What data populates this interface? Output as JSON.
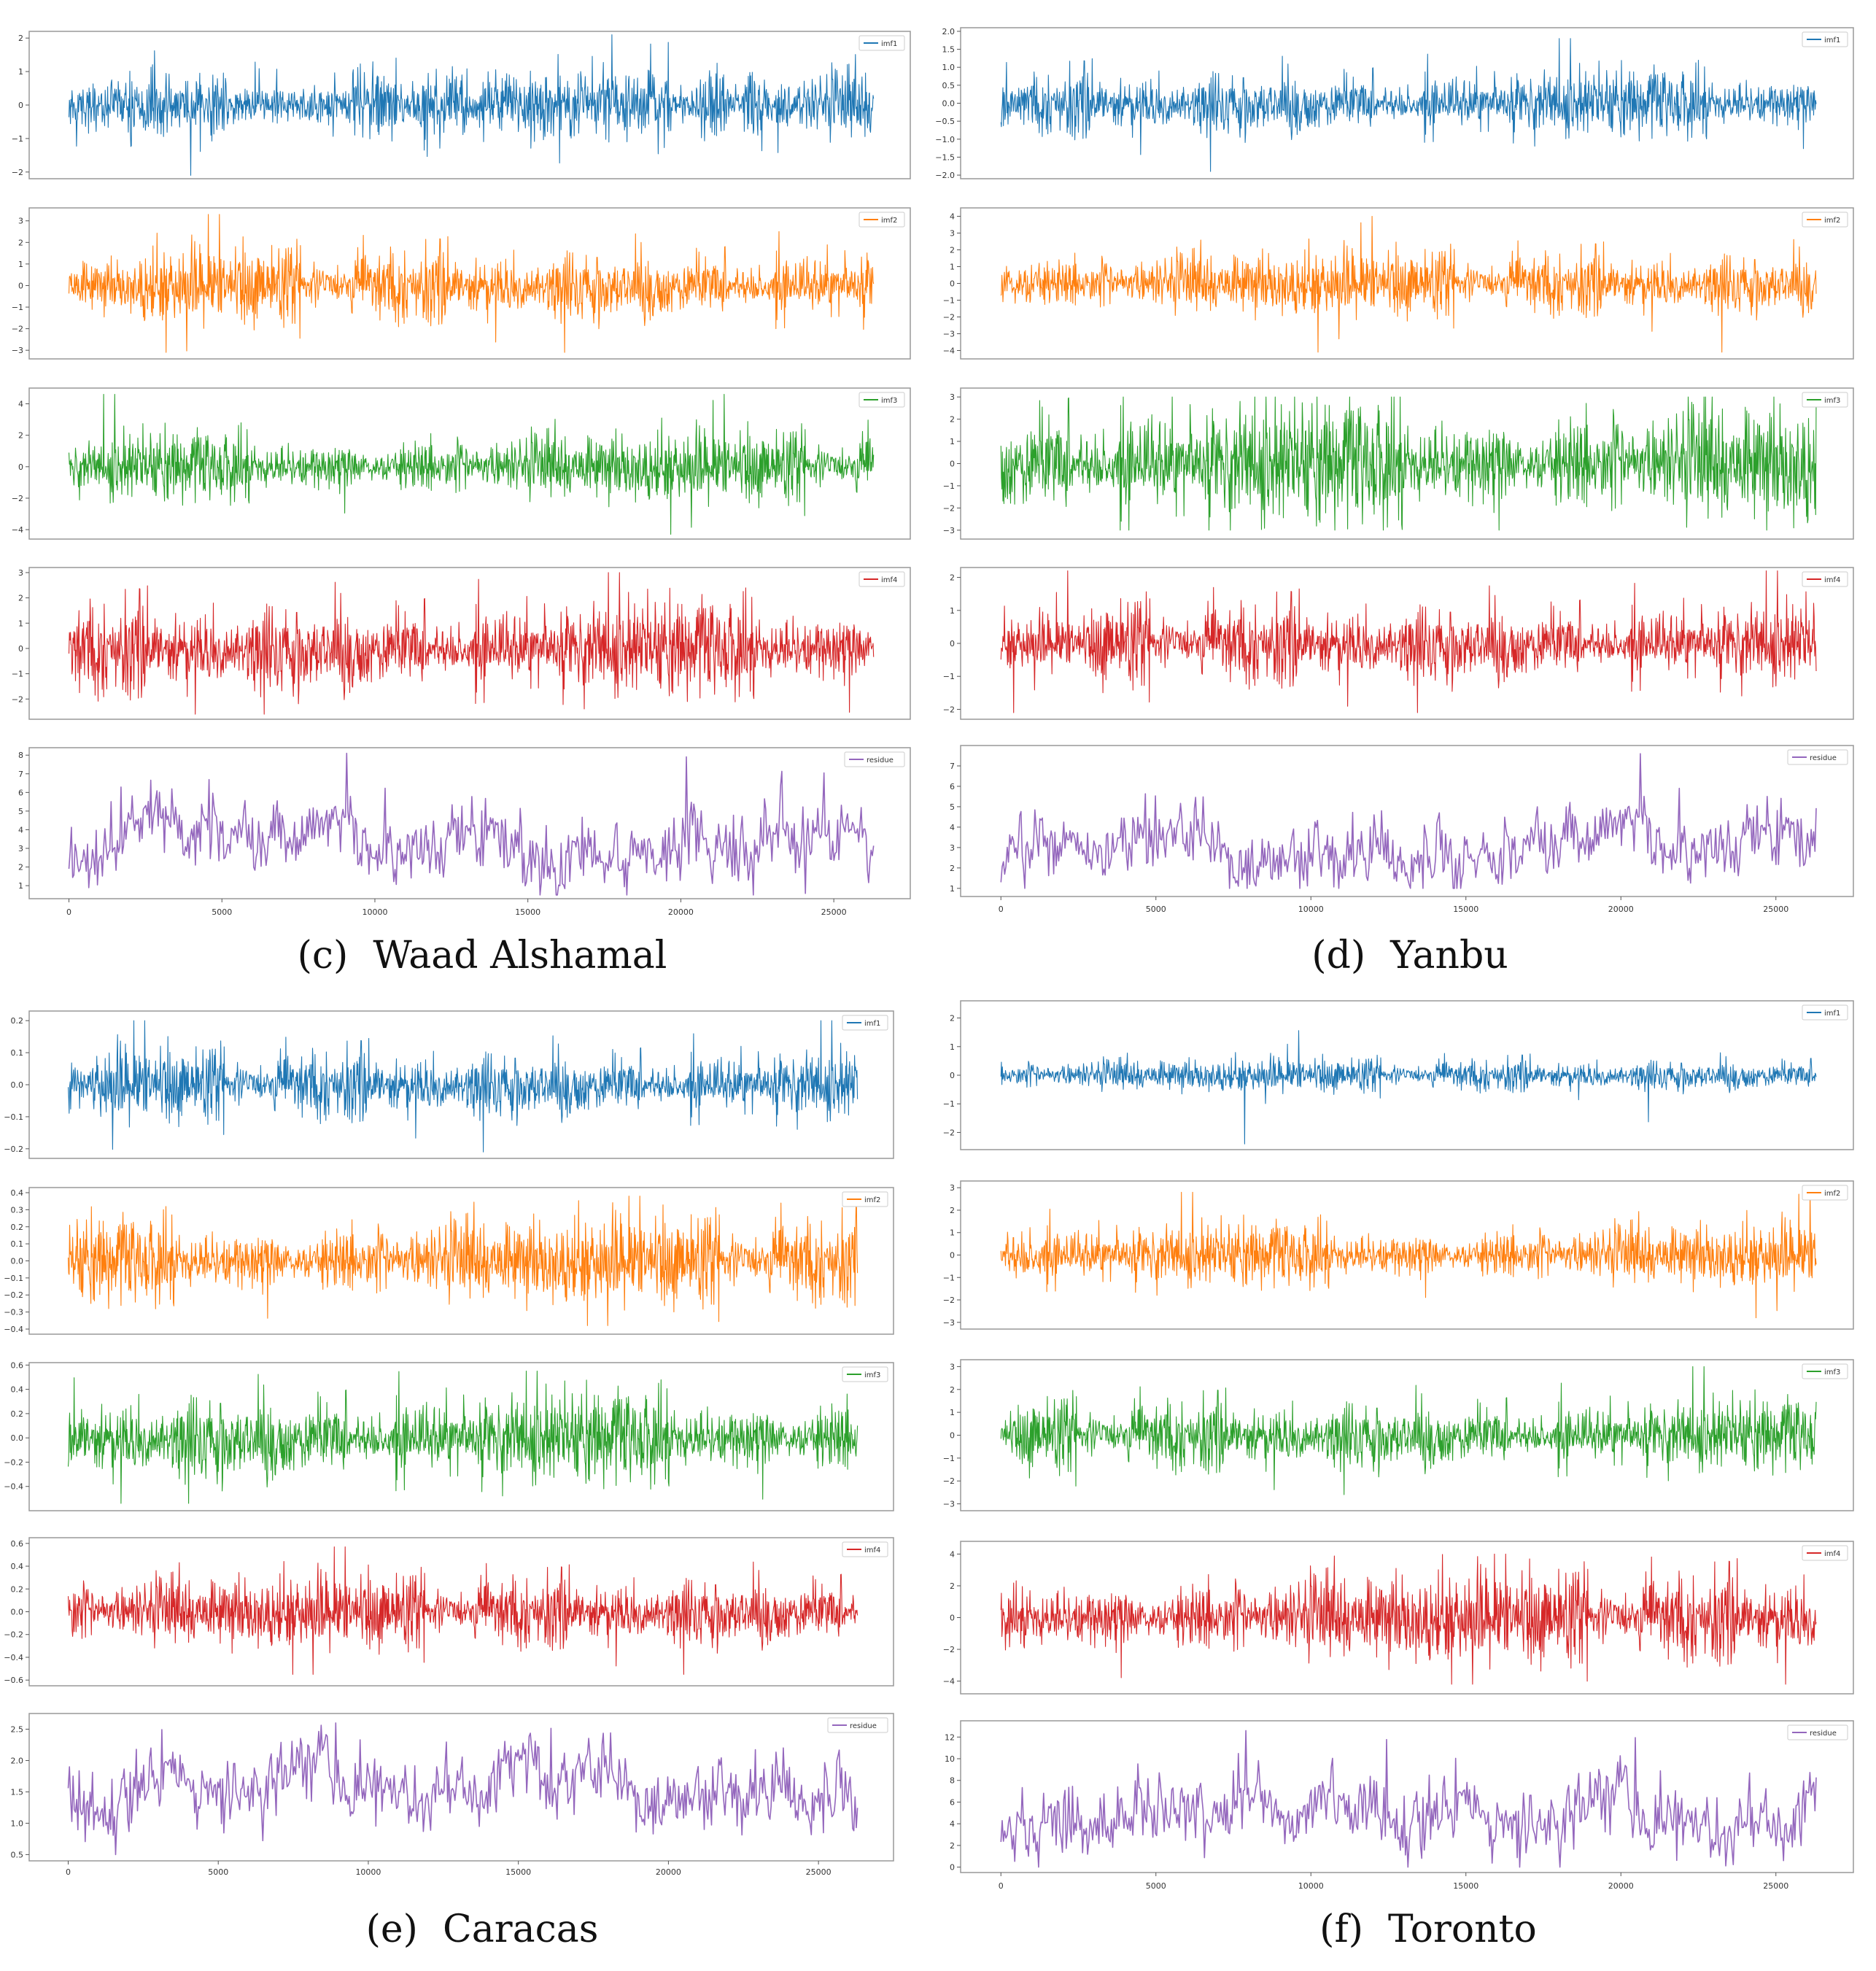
{
  "chart_data": [
    {
      "type": "line",
      "caption_label": "(c)",
      "caption_name": "Waad Alshamal",
      "xticks": [
        0,
        5000,
        10000,
        15000,
        20000,
        25000
      ],
      "xlim": [
        -1300,
        27500
      ],
      "x_count": 26300,
      "subplots": [
        {
          "legend": "imf1",
          "color": "#1f77b4",
          "yticks": [
            -2,
            -1,
            0,
            1,
            2
          ],
          "ylim": [
            -2.2,
            2.2
          ],
          "center": 0,
          "sigma": 0.35,
          "range": [
            -2.1,
            2.1
          ]
        },
        {
          "legend": "imf2",
          "color": "#ff7f0e",
          "yticks": [
            -3,
            -2,
            -1,
            0,
            1,
            2,
            3
          ],
          "ylim": [
            -3.4,
            3.6
          ],
          "center": 0,
          "sigma": 0.55,
          "range": [
            -3.1,
            3.3
          ]
        },
        {
          "legend": "imf3",
          "color": "#2ca02c",
          "yticks": [
            -4,
            -2,
            0,
            2,
            4
          ],
          "ylim": [
            -4.6,
            5
          ],
          "center": 0,
          "sigma": 0.7,
          "range": [
            -4.3,
            4.6
          ]
        },
        {
          "legend": "imf4",
          "color": "#d62728",
          "yticks": [
            -2,
            -1,
            0,
            1,
            2,
            3
          ],
          "ylim": [
            -2.8,
            3.2
          ],
          "center": 0,
          "sigma": 0.6,
          "range": [
            -2.6,
            3.0
          ]
        },
        {
          "legend": "residue",
          "color": "#9467bd",
          "yticks": [
            1,
            2,
            3,
            4,
            5,
            6,
            7,
            8
          ],
          "ylim": [
            0.3,
            8.4
          ],
          "center": 3.0,
          "sigma": 1.0,
          "range": [
            0.5,
            8.1
          ]
        }
      ]
    },
    {
      "type": "line",
      "caption_label": "(d)",
      "caption_name": "Yanbu",
      "xticks": [
        0,
        5000,
        10000,
        15000,
        20000,
        25000
      ],
      "xlim": [
        -1300,
        27500
      ],
      "x_count": 26300,
      "subplots": [
        {
          "legend": "imf1",
          "color": "#1f77b4",
          "yticks": [
            -2.0,
            -1.5,
            -1.0,
            -0.5,
            0.0,
            0.5,
            1.0,
            1.5,
            2.0
          ],
          "ytick_labels": [
            "−2.0",
            "−1.5",
            "−1.0",
            "−0.5",
            "0.0",
            "0.5",
            "1.0",
            "1.5",
            "2.0"
          ],
          "ylim": [
            -2.1,
            2.1
          ],
          "center": 0,
          "sigma": 0.3,
          "range": [
            -1.9,
            1.8
          ]
        },
        {
          "legend": "imf2",
          "color": "#ff7f0e",
          "yticks": [
            -4,
            -3,
            -2,
            -1,
            0,
            1,
            2,
            3,
            4
          ],
          "ylim": [
            -4.5,
            4.5
          ],
          "center": 0,
          "sigma": 0.6,
          "range": [
            -4.1,
            4.0
          ]
        },
        {
          "legend": "imf3",
          "color": "#2ca02c",
          "yticks": [
            -3,
            -2,
            -1,
            0,
            1,
            2,
            3
          ],
          "ylim": [
            -3.4,
            3.4
          ],
          "center": 0,
          "sigma": 0.9,
          "range": [
            -3.0,
            3.0
          ]
        },
        {
          "legend": "imf4",
          "color": "#d62728",
          "yticks": [
            -2,
            -1,
            0,
            1,
            2
          ],
          "ylim": [
            -2.3,
            2.3
          ],
          "center": 0,
          "sigma": 0.4,
          "range": [
            -2.1,
            2.2
          ]
        },
        {
          "legend": "residue",
          "color": "#9467bd",
          "yticks": [
            1,
            2,
            3,
            4,
            5,
            6,
            7
          ],
          "ylim": [
            0.6,
            8
          ],
          "center": 3.0,
          "sigma": 0.9,
          "range": [
            1.0,
            7.6
          ]
        }
      ]
    },
    {
      "type": "line",
      "caption_label": "(e)",
      "caption_name": "Caracas",
      "xticks": [
        0,
        5000,
        10000,
        15000,
        20000,
        25000
      ],
      "xlim": [
        -1300,
        27500
      ],
      "x_count": 26300,
      "subplots": [
        {
          "legend": "imf1",
          "color": "#1f77b4",
          "yticks": [
            -0.2,
            -0.1,
            0.0,
            0.1,
            0.2
          ],
          "ytick_labels": [
            "−0.2",
            "−0.1",
            "0.0",
            "0.1",
            "0.2"
          ],
          "ylim": [
            -0.23,
            0.23
          ],
          "center": 0,
          "sigma": 0.035,
          "range": [
            -0.21,
            0.2
          ]
        },
        {
          "legend": "imf2",
          "color": "#ff7f0e",
          "yticks": [
            -0.4,
            -0.3,
            -0.2,
            -0.1,
            0.0,
            0.1,
            0.2,
            0.3,
            0.4
          ],
          "ytick_labels": [
            "−0.4",
            "−0.3",
            "−0.2",
            "−0.1",
            "0.0",
            "0.1",
            "0.2",
            "0.3",
            "0.4"
          ],
          "ylim": [
            -0.43,
            0.43
          ],
          "center": 0,
          "sigma": 0.08,
          "range": [
            -0.38,
            0.38
          ]
        },
        {
          "legend": "imf3",
          "color": "#2ca02c",
          "yticks": [
            -0.4,
            -0.2,
            0.0,
            0.2,
            0.4,
            0.6
          ],
          "ytick_labels": [
            "−0.4",
            "−0.2",
            "0.0",
            "0.2",
            "0.4",
            "0.6"
          ],
          "ylim": [
            -0.6,
            0.62
          ],
          "center": 0,
          "sigma": 0.12,
          "range": [
            -0.54,
            0.55
          ]
        },
        {
          "legend": "imf4",
          "color": "#d62728",
          "yticks": [
            -0.6,
            -0.4,
            -0.2,
            0.0,
            0.2,
            0.4,
            0.6
          ],
          "ytick_labels": [
            "−0.6",
            "−0.4",
            "−0.2",
            "0.0",
            "0.2",
            "0.4",
            "0.6"
          ],
          "ylim": [
            -0.65,
            0.65
          ],
          "center": 0,
          "sigma": 0.1,
          "range": [
            -0.55,
            0.57
          ]
        },
        {
          "legend": "residue",
          "color": "#9467bd",
          "yticks": [
            0.5,
            1.0,
            1.5,
            2.0,
            2.5
          ],
          "ytick_labels": [
            "0.5",
            "1.0",
            "1.5",
            "2.0",
            "2.5"
          ],
          "ylim": [
            0.4,
            2.75
          ],
          "center": 1.6,
          "sigma": 0.3,
          "range": [
            0.5,
            2.6
          ]
        }
      ]
    },
    {
      "type": "line",
      "caption_label": "(f)",
      "caption_name": "Toronto",
      "xticks": [
        0,
        5000,
        10000,
        15000,
        20000,
        25000
      ],
      "xlim": [
        -1300,
        27500
      ],
      "x_count": 26300,
      "subplots": [
        {
          "legend": "imf1",
          "color": "#1f77b4",
          "yticks": [
            -2,
            -1,
            0,
            1,
            2
          ],
          "ylim": [
            -2.6,
            2.6
          ],
          "center": 0,
          "sigma": 0.18,
          "range": [
            -2.4,
            2.4
          ]
        },
        {
          "legend": "imf2",
          "color": "#ff7f0e",
          "yticks": [
            -3,
            -2,
            -1,
            0,
            1,
            2,
            3
          ],
          "ylim": [
            -3.3,
            3.3
          ],
          "center": 0,
          "sigma": 0.45,
          "range": [
            -2.8,
            2.8
          ]
        },
        {
          "legend": "imf3",
          "color": "#2ca02c",
          "yticks": [
            -3,
            -2,
            -1,
            0,
            1,
            2,
            3
          ],
          "ylim": [
            -3.3,
            3.3
          ],
          "center": 0,
          "sigma": 0.5,
          "range": [
            -2.6,
            3.0
          ]
        },
        {
          "legend": "imf4",
          "color": "#d62728",
          "yticks": [
            -4,
            -2,
            0,
            2,
            4
          ],
          "ylim": [
            -4.8,
            4.8
          ],
          "center": 0,
          "sigma": 0.9,
          "range": [
            -4.2,
            4.0
          ]
        },
        {
          "legend": "residue",
          "color": "#9467bd",
          "yticks": [
            0,
            2,
            4,
            6,
            8,
            10,
            12
          ],
          "ylim": [
            -0.5,
            13.5
          ],
          "center": 4.5,
          "sigma": 1.8,
          "range": [
            0,
            12.6
          ]
        }
      ]
    }
  ]
}
